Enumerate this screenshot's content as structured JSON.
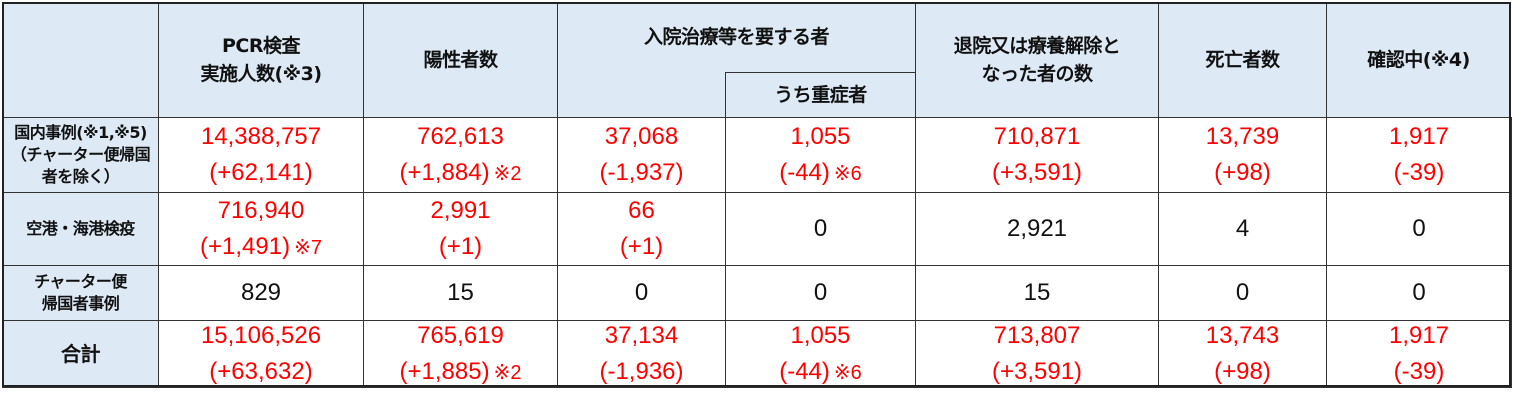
{
  "header": {
    "pcr": [
      "PCR検査",
      "実施人数(※3)"
    ],
    "positive": "陽性者数",
    "hospital": "入院治療等を要する者",
    "severe": "うち重症者",
    "discharged": [
      "退院又は療養解除と",
      "なった者の数"
    ],
    "deaths": "死亡者数",
    "confirming": "確認中(※4)"
  },
  "rows": [
    {
      "label": [
        "国内事例(※1,※5)",
        "（チャーター便帰国",
        "者を除く）"
      ],
      "cells": [
        {
          "value": "14,388,757",
          "delta": "(+62,141)",
          "note": "",
          "color": "red"
        },
        {
          "value": "762,613",
          "delta": "(+1,884)",
          "note": "※2",
          "color": "red"
        },
        {
          "value": "37,068",
          "delta": "(-1,937)",
          "note": "",
          "color": "red"
        },
        {
          "value": "1,055",
          "delta": "(-44)",
          "note": "※6",
          "color": "red"
        },
        {
          "value": "710,871",
          "delta": "(+3,591)",
          "note": "",
          "color": "red"
        },
        {
          "value": "13,739",
          "delta": "(+98)",
          "note": "",
          "color": "red"
        },
        {
          "value": "1,917",
          "delta": "(-39)",
          "note": "",
          "color": "red"
        }
      ]
    },
    {
      "label": [
        "空港・海港検疫"
      ],
      "cells": [
        {
          "value": "716,940",
          "delta": "(+1,491)",
          "note": "※7",
          "color": "red"
        },
        {
          "value": "2,991",
          "delta": "(+1)",
          "note": "",
          "color": "red"
        },
        {
          "value": "66",
          "delta": "(+1)",
          "note": "",
          "color": "red"
        },
        {
          "value": "0",
          "delta": "",
          "note": "",
          "color": "black"
        },
        {
          "value": "2,921",
          "delta": "",
          "note": "",
          "color": "black"
        },
        {
          "value": "4",
          "delta": "",
          "note": "",
          "color": "black"
        },
        {
          "value": "0",
          "delta": "",
          "note": "",
          "color": "black"
        }
      ]
    },
    {
      "label": [
        "チャーター便",
        "帰国者事例"
      ],
      "cells": [
        {
          "value": "829",
          "delta": "",
          "note": "",
          "color": "black"
        },
        {
          "value": "15",
          "delta": "",
          "note": "",
          "color": "black"
        },
        {
          "value": "0",
          "delta": "",
          "note": "",
          "color": "black"
        },
        {
          "value": "0",
          "delta": "",
          "note": "",
          "color": "black"
        },
        {
          "value": "15",
          "delta": "",
          "note": "",
          "color": "black"
        },
        {
          "value": "0",
          "delta": "",
          "note": "",
          "color": "black"
        },
        {
          "value": "0",
          "delta": "",
          "note": "",
          "color": "black"
        }
      ]
    },
    {
      "label": [
        "合計"
      ],
      "cells": [
        {
          "value": "15,106,526",
          "delta": "(+63,632)",
          "note": "",
          "color": "red"
        },
        {
          "value": "765,619",
          "delta": "(+1,885)",
          "note": "※2",
          "color": "red"
        },
        {
          "value": "37,134",
          "delta": "(-1,936)",
          "note": "",
          "color": "red"
        },
        {
          "value": "1,055",
          "delta": "(-44)",
          "note": "※6",
          "color": "red"
        },
        {
          "value": "713,807",
          "delta": "(+3,591)",
          "note": "",
          "color": "red"
        },
        {
          "value": "13,743",
          "delta": "(+98)",
          "note": "",
          "color": "red"
        },
        {
          "value": "1,917",
          "delta": "(-39)",
          "note": "",
          "color": "red"
        }
      ]
    }
  ],
  "colors": {
    "header_bg": "#ddeaf6",
    "highlight": "#ff0000",
    "text": "#111111"
  }
}
